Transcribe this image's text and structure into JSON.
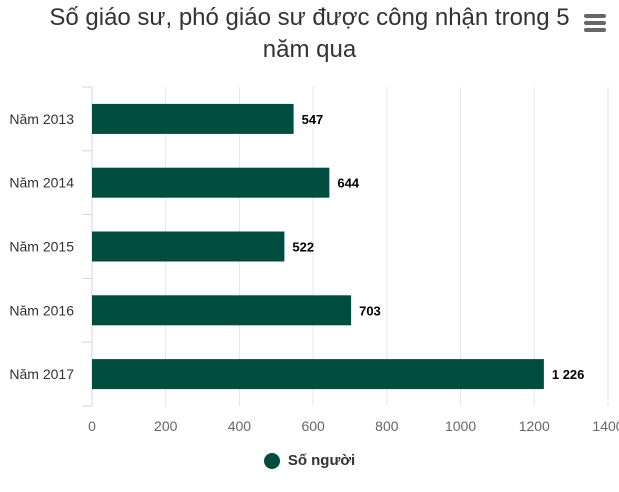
{
  "menu_icon": "hamburger-menu-icon",
  "chart_data": {
    "type": "bar",
    "orientation": "horizontal",
    "title": "Số giáo sư, phó giáo sư được công nhận trong 5\nnăm qua",
    "categories": [
      "Năm 2013",
      "Năm 2014",
      "Năm 2015",
      "Năm 2016",
      "Năm 2017"
    ],
    "series": [
      {
        "name": "Số người",
        "color": "#004d40",
        "values": [
          547,
          644,
          522,
          703,
          1226
        ],
        "data_labels": [
          "547",
          "644",
          "522",
          "703",
          "1 226"
        ]
      }
    ],
    "xlim": [
      0,
      1400
    ],
    "xticks": [
      0,
      200,
      400,
      600,
      800,
      1000,
      1200,
      1400
    ],
    "grid": true,
    "legend": "bottom-center"
  }
}
